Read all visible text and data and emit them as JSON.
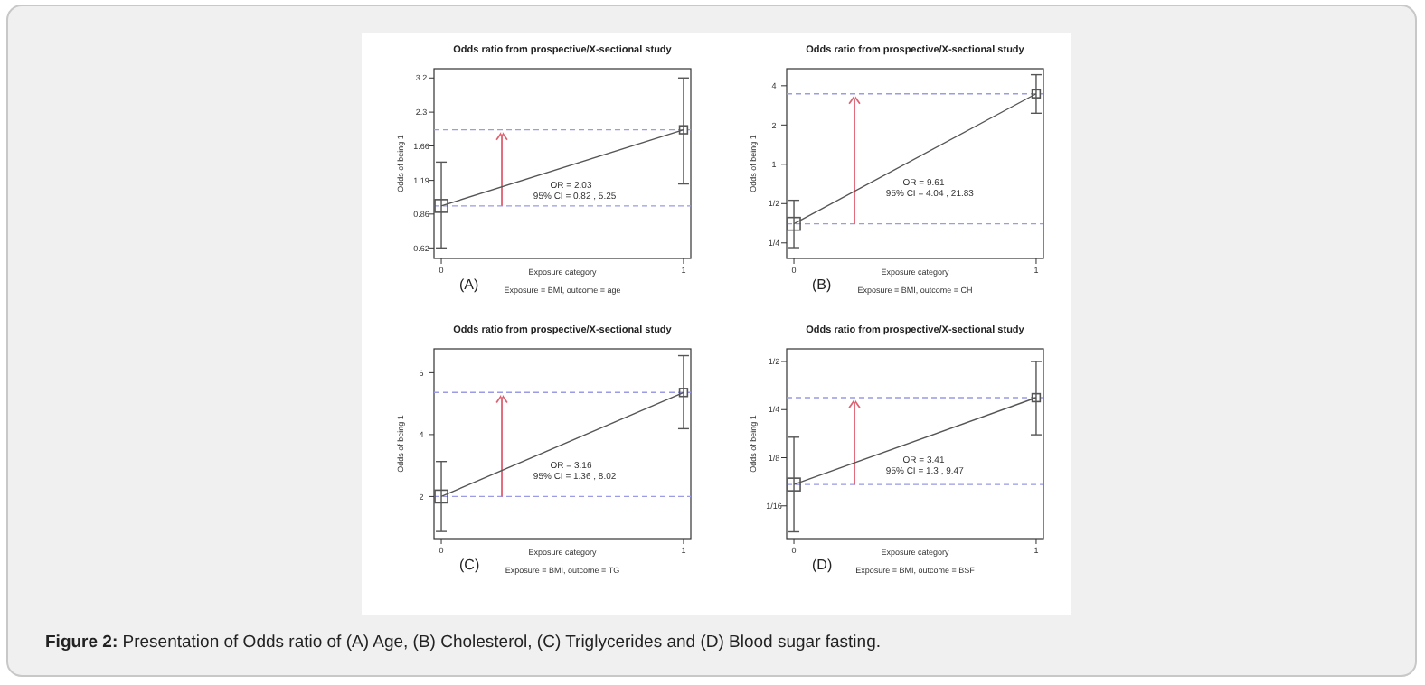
{
  "chart_data": [
    {
      "type": "line",
      "title": "Odds ratio from prospective/X-sectional study",
      "xlabel": "Exposure category",
      "ylabel": "Odds of being 1",
      "categories": [
        "0",
        "1"
      ],
      "log": true,
      "ylim": [
        0.56,
        3.5
      ],
      "yticks": [
        0.62,
        0.86,
        1.19,
        1.66,
        2.3,
        3.2
      ],
      "marker": "square",
      "line_style": "solid",
      "series": [
        {
          "color": "#555555",
          "values": [
            0.93,
            1.94
          ],
          "errors": [
            [
              0.62,
              1.42
            ],
            [
              1.15,
              3.2
            ]
          ]
        }
      ],
      "ref_lines": [
        {
          "axis": "y",
          "value": 0.93,
          "color": "#9b9be6",
          "line_style": "dashed"
        },
        {
          "axis": "y",
          "value": 1.94,
          "color": "#9b9be6",
          "line_style": "dashed"
        }
      ],
      "annotations": [
        "OR = 2.03",
        "95% CI = 0.82 , 5.25",
        "(A)",
        "Exposure = BMI, outcome = age"
      ]
    },
    {
      "type": "line",
      "title": "Odds ratio from prospective/X-sectional study",
      "xlabel": "Exposure category",
      "ylabel": "Odds of being 1",
      "categories": [
        "0",
        "1"
      ],
      "log": true,
      "ylim": [
        0.19,
        5.4
      ],
      "yticks": [
        {
          "value": 0.25,
          "label": "1/4"
        },
        {
          "value": 0.5,
          "label": "1/2"
        },
        1,
        2,
        4
      ],
      "marker": "square",
      "line_style": "solid",
      "series": [
        {
          "color": "#555555",
          "values": [
            0.35,
            3.47
          ],
          "errors": [
            [
              0.23,
              0.53
            ],
            [
              2.46,
              4.86
            ]
          ]
        }
      ],
      "ref_lines": [
        {
          "axis": "y",
          "value": 0.35,
          "color": "#9b9be6",
          "line_style": "dashed"
        },
        {
          "axis": "y",
          "value": 3.47,
          "color": "#9b9be6",
          "line_style": "dashed"
        }
      ],
      "annotations": [
        "OR = 9.61",
        "95% CI = 4.04 , 21.83",
        "(B)",
        "Exposure = BMI, outcome = CH"
      ]
    },
    {
      "type": "line",
      "title": "Odds ratio from prospective/X-sectional study",
      "xlabel": "Exposure category",
      "ylabel": "Odds of being 1",
      "categories": [
        "0",
        "1"
      ],
      "ylim": [
        0.64,
        6.77
      ],
      "yticks": [
        2,
        4,
        6
      ],
      "marker": "square",
      "line_style": "solid",
      "series": [
        {
          "color": "#555555",
          "values": [
            2.0,
            5.36
          ],
          "errors": [
            [
              0.87,
              3.13
            ],
            [
              4.19,
              6.55
            ]
          ]
        }
      ],
      "ref_lines": [
        {
          "axis": "y",
          "value": 2.0,
          "color": "#9b9be6",
          "line_style": "dashed"
        },
        {
          "axis": "y",
          "value": 5.36,
          "color": "#9b9be6",
          "line_style": "dashed"
        }
      ],
      "annotations": [
        "OR = 3.16",
        "95% CI = 1.36 , 8.02",
        "(C)",
        "Exposure = BMI, outcome = TG"
      ]
    },
    {
      "type": "line",
      "title": "Odds ratio from prospective/X-sectional study",
      "xlabel": "Exposure category",
      "ylabel": "Odds of being 1",
      "categories": [
        "0",
        "1"
      ],
      "log": true,
      "ylim": [
        0.039,
        0.6
      ],
      "yticks": [
        {
          "value": 0.0625,
          "label": "1/16"
        },
        {
          "value": 0.125,
          "label": "1/8"
        },
        {
          "value": 0.25,
          "label": "1/4"
        },
        {
          "value": 0.5,
          "label": "1/2"
        }
      ],
      "marker": "square",
      "line_style": "solid",
      "series": [
        {
          "color": "#555555",
          "values": [
            0.085,
            0.297
          ],
          "errors": [
            [
              0.043,
              0.168
            ],
            [
              0.174,
              0.5
            ]
          ]
        }
      ],
      "ref_lines": [
        {
          "axis": "y",
          "value": 0.085,
          "color": "#9b9be6",
          "line_style": "dashed"
        },
        {
          "axis": "y",
          "value": 0.297,
          "color": "#9b9be6",
          "line_style": "dashed"
        }
      ],
      "annotations": [
        "OR = 3.41",
        "95% CI = 1.3 , 9.47",
        "(D)",
        "Exposure = BMI, outcome = BSF",
        "Figure 2: Presentation of Odds ratio of (A) Age, (B) Cholesterol, (C) Triglycerides and (D) Blood sugar fasting."
      ]
    }
  ]
}
